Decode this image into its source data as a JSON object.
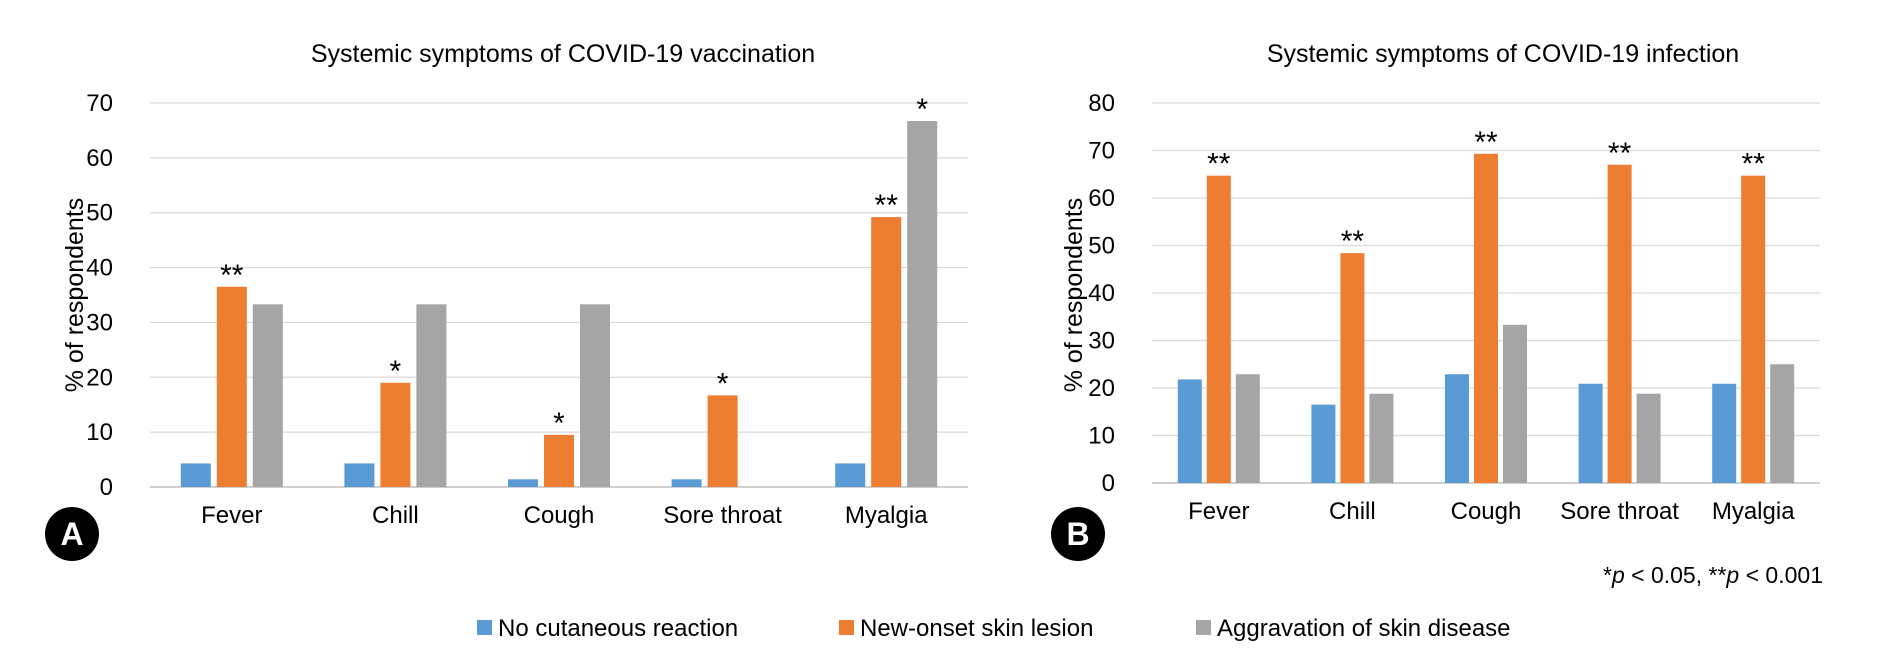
{
  "colors": {
    "series": [
      "#5b9bd5",
      "#ed7d31",
      "#a5a5a5"
    ],
    "grid": "#d9d9d9",
    "axis": "#bfbfbf",
    "badge_bg": "#000000",
    "badge_fg": "#ffffff"
  },
  "legend": {
    "position": "bottom-center",
    "items": [
      "No cutaneous reaction",
      "New-onset skin lesion",
      "Aggravation of skin disease"
    ]
  },
  "footnote": {
    "p1_prefix": "*",
    "p1_var": "p",
    "p1_text": " < 0.05, **",
    "p2_var": "p",
    "p2_text": " < 0.001"
  },
  "chart_data": [
    {
      "panel": "A",
      "type": "bar",
      "title": "Systemic symptoms of COVID-19 vaccination",
      "ylabel": "% of respondents",
      "ylim": [
        0,
        70
      ],
      "yticks": [
        0,
        10,
        20,
        30,
        40,
        50,
        60,
        70
      ],
      "grid": true,
      "categories": [
        "Fever",
        "Chill",
        "Cough",
        "Sore throat",
        "Myalgia"
      ],
      "series": [
        {
          "name": "No cutaneous reaction",
          "values": [
            4.3,
            4.3,
            1.4,
            1.4,
            4.3
          ]
        },
        {
          "name": "New-onset skin lesion",
          "values": [
            36.5,
            19.0,
            9.5,
            16.7,
            49.2
          ]
        },
        {
          "name": "Aggravation of skin disease",
          "values": [
            33.3,
            33.3,
            33.3,
            0,
            66.7
          ]
        }
      ],
      "significance": [
        {
          "category": "Fever",
          "series": "New-onset skin lesion",
          "label": "**"
        },
        {
          "category": "Chill",
          "series": "New-onset skin lesion",
          "label": "*"
        },
        {
          "category": "Cough",
          "series": "New-onset skin lesion",
          "label": "*"
        },
        {
          "category": "Sore throat",
          "series": "New-onset skin lesion",
          "label": "*"
        },
        {
          "category": "Myalgia",
          "series": "New-onset skin lesion",
          "label": "**"
        },
        {
          "category": "Myalgia",
          "series": "Aggravation of skin disease",
          "label": "*"
        }
      ]
    },
    {
      "panel": "B",
      "type": "bar",
      "title": "Systemic symptoms of COVID-19 infection",
      "ylabel": "% of respondents",
      "ylim": [
        0,
        80
      ],
      "yticks": [
        0,
        10,
        20,
        30,
        40,
        50,
        60,
        70,
        80
      ],
      "grid": true,
      "categories": [
        "Fever",
        "Chill",
        "Cough",
        "Sore throat",
        "Myalgia"
      ],
      "series": [
        {
          "name": "No cutaneous reaction",
          "values": [
            21.8,
            16.5,
            22.9,
            20.9,
            20.9
          ]
        },
        {
          "name": "New-onset skin lesion",
          "values": [
            64.7,
            48.4,
            69.3,
            67.0,
            64.7
          ]
        },
        {
          "name": "Aggravation of skin disease",
          "values": [
            22.9,
            18.8,
            33.3,
            18.8,
            25.0
          ]
        }
      ],
      "significance": [
        {
          "category": "Fever",
          "series": "New-onset skin lesion",
          "label": "**"
        },
        {
          "category": "Chill",
          "series": "New-onset skin lesion",
          "label": "**"
        },
        {
          "category": "Cough",
          "series": "New-onset skin lesion",
          "label": "**"
        },
        {
          "category": "Sore throat",
          "series": "New-onset skin lesion",
          "label": "**"
        },
        {
          "category": "Myalgia",
          "series": "New-onset skin lesion",
          "label": "**"
        }
      ]
    }
  ]
}
